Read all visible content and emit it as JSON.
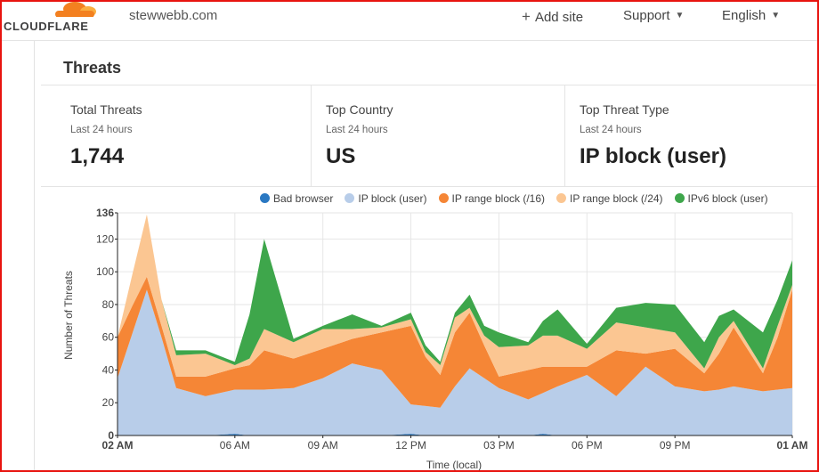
{
  "nav": {
    "logo_text": "CLOUDFLARE",
    "domain": "stewwebb.com",
    "add_site": "Add site",
    "support": "Support",
    "language": "English"
  },
  "section_title": "Threats",
  "stats": [
    {
      "label": "Total Threats",
      "period": "Last 24 hours",
      "value": "1,744"
    },
    {
      "label": "Top Country",
      "period": "Last 24 hours",
      "value": "US"
    },
    {
      "label": "Top Threat Type",
      "period": "Last 24 hours",
      "value": "IP block (user)"
    }
  ],
  "colors": {
    "brand_orange": "#f38020",
    "bad_browser": "#2a78c2",
    "ip_block_user": "#b8cde9",
    "ip_range_16": "#f58636",
    "ip_range_24": "#fbc692",
    "ipv6_block_user": "#3ea64b",
    "frame": "#e8140f"
  },
  "chart_data": {
    "type": "area",
    "stacked": true,
    "xlabel": "Time (local)",
    "ylabel": "Number of Threats",
    "ylim": [
      0,
      136
    ],
    "yticks": [
      0,
      20,
      40,
      60,
      80,
      100,
      120,
      136
    ],
    "grid": true,
    "legend_position": "top",
    "xtick_labels": [
      {
        "index": 0,
        "label": "02 AM"
      },
      {
        "index": 4,
        "label": "06 AM"
      },
      {
        "index": 7,
        "label": "09 AM"
      },
      {
        "index": 10,
        "label": "12 PM"
      },
      {
        "index": 13,
        "label": "03 PM"
      },
      {
        "index": 16,
        "label": "06 PM"
      },
      {
        "index": 19,
        "label": "09 PM"
      },
      {
        "index": 23,
        "label": "01 AM"
      }
    ],
    "x": [
      0,
      0.5,
      1,
      1.5,
      2,
      3,
      4,
      4.5,
      5,
      6,
      7,
      8,
      9,
      10,
      10.5,
      11,
      11.5,
      12,
      12.5,
      13,
      14,
      14.5,
      15,
      16,
      17,
      18,
      19,
      20,
      20.5,
      21,
      22,
      22.5,
      23
    ],
    "series": [
      {
        "name": "Bad browser",
        "color": "#2a78c2",
        "values": [
          0,
          0,
          0,
          0,
          0,
          0,
          1,
          0,
          0,
          0,
          0,
          0,
          0,
          1,
          0,
          0,
          0,
          0,
          0,
          0,
          0,
          1,
          0,
          0,
          0,
          0,
          0,
          0,
          0,
          0,
          0,
          0,
          0
        ]
      },
      {
        "name": "IP block (user)",
        "color": "#b8cde9",
        "values": [
          35,
          62,
          89,
          60,
          29,
          24,
          27,
          28,
          28,
          29,
          35,
          44,
          40,
          18,
          18,
          17,
          30,
          41,
          35,
          29,
          22,
          25,
          30,
          37,
          24,
          42,
          30,
          27,
          28,
          30,
          27,
          28,
          29
        ]
      },
      {
        "name": "IP range block (/16)",
        "color": "#f58636",
        "values": [
          25,
          17,
          8,
          7,
          7,
          12,
          13,
          15,
          24,
          18,
          18,
          15,
          23,
          48,
          30,
          20,
          33,
          34,
          20,
          7,
          18,
          16,
          12,
          5,
          28,
          8,
          23,
          11,
          22,
          36,
          11,
          32,
          60
        ]
      },
      {
        "name": "IP range block (/24)",
        "color": "#fbc692",
        "values": [
          0,
          19,
          38,
          16,
          13,
          14,
          2,
          4,
          13,
          10,
          12,
          6,
          3,
          4,
          3,
          6,
          9,
          3,
          6,
          18,
          15,
          19,
          19,
          11,
          17,
          16,
          10,
          3,
          10,
          4,
          3,
          7,
          3
        ]
      },
      {
        "name": "IPv6 block (user)",
        "color": "#3ea64b",
        "values": [
          0,
          0,
          0,
          0,
          3,
          2,
          2,
          27,
          55,
          2,
          2,
          9,
          1,
          4,
          4,
          2,
          3,
          8,
          6,
          9,
          2,
          9,
          16,
          3,
          9,
          15,
          17,
          16,
          13,
          7,
          22,
          16,
          15
        ]
      }
    ]
  }
}
